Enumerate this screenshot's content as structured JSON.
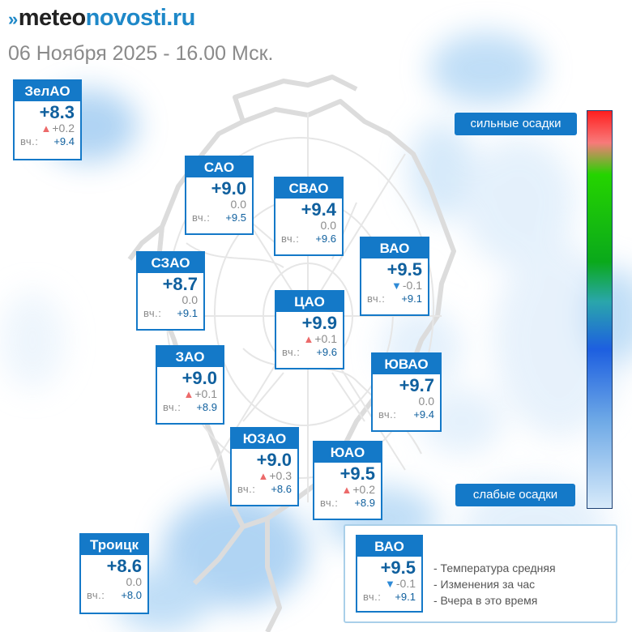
{
  "header": {
    "logo_mark": "»",
    "logo_part1": "meteo",
    "logo_part2": "novosti.ru",
    "datetime": "06 Ноября 2025 - 16.00 Мск."
  },
  "colors": {
    "card_accent": "#1479c8",
    "temp_text": "#10609e",
    "rise_marker": "#ec6a6a",
    "fall_marker": "#2e8ad6"
  },
  "districts": [
    {
      "name": "ЗелАО",
      "temp": "+8.3",
      "change": "+0.2",
      "trend": "up",
      "yesterday_label": "вч.:",
      "yesterday": "+9.4"
    },
    {
      "name": "САО",
      "temp": "+9.0",
      "change": "0.0",
      "trend": "none",
      "yesterday_label": "вч.:",
      "yesterday": "+9.5"
    },
    {
      "name": "СВАО",
      "temp": "+9.4",
      "change": "0.0",
      "trend": "none",
      "yesterday_label": "вч.:",
      "yesterday": "+9.6"
    },
    {
      "name": "ВАО",
      "temp": "+9.5",
      "change": "-0.1",
      "trend": "down",
      "yesterday_label": "вч.:",
      "yesterday": "+9.1"
    },
    {
      "name": "СЗАО",
      "temp": "+8.7",
      "change": "0.0",
      "trend": "none",
      "yesterday_label": "вч.:",
      "yesterday": "+9.1"
    },
    {
      "name": "ЦАО",
      "temp": "+9.9",
      "change": "+0.1",
      "trend": "up",
      "yesterday_label": "вч.:",
      "yesterday": "+9.6"
    },
    {
      "name": "ЗАО",
      "temp": "+9.0",
      "change": "+0.1",
      "trend": "up",
      "yesterday_label": "вч.:",
      "yesterday": "+8.9"
    },
    {
      "name": "ЮВАО",
      "temp": "+9.7",
      "change": "0.0",
      "trend": "none",
      "yesterday_label": "вч.:",
      "yesterday": "+9.4"
    },
    {
      "name": "ЮЗАО",
      "temp": "+9.0",
      "change": "+0.3",
      "trend": "up",
      "yesterday_label": "вч.:",
      "yesterday": "+8.6"
    },
    {
      "name": "ЮАО",
      "temp": "+9.5",
      "change": "+0.2",
      "trend": "up",
      "yesterday_label": "вч.:",
      "yesterday": "+8.9"
    },
    {
      "name": "Троицк",
      "temp": "+8.6",
      "change": "0.0",
      "trend": "none",
      "yesterday_label": "вч.:",
      "yesterday": "+8.0"
    }
  ],
  "precip_scale": {
    "high_label": "сильные осадки",
    "low_label": "слабые осадки",
    "colors": [
      "#ff1f1f",
      "#25d400",
      "#1d5fe0",
      "#d7eafa"
    ]
  },
  "legend": {
    "sample": {
      "name": "ВАО",
      "temp": "+9.5",
      "change": "-0.1",
      "trend": "down",
      "yesterday_label": "вч.:",
      "yesterday": "+9.1"
    },
    "lines": [
      "- Температура средняя",
      "- Изменения за час",
      "- Вчера в это время"
    ]
  }
}
